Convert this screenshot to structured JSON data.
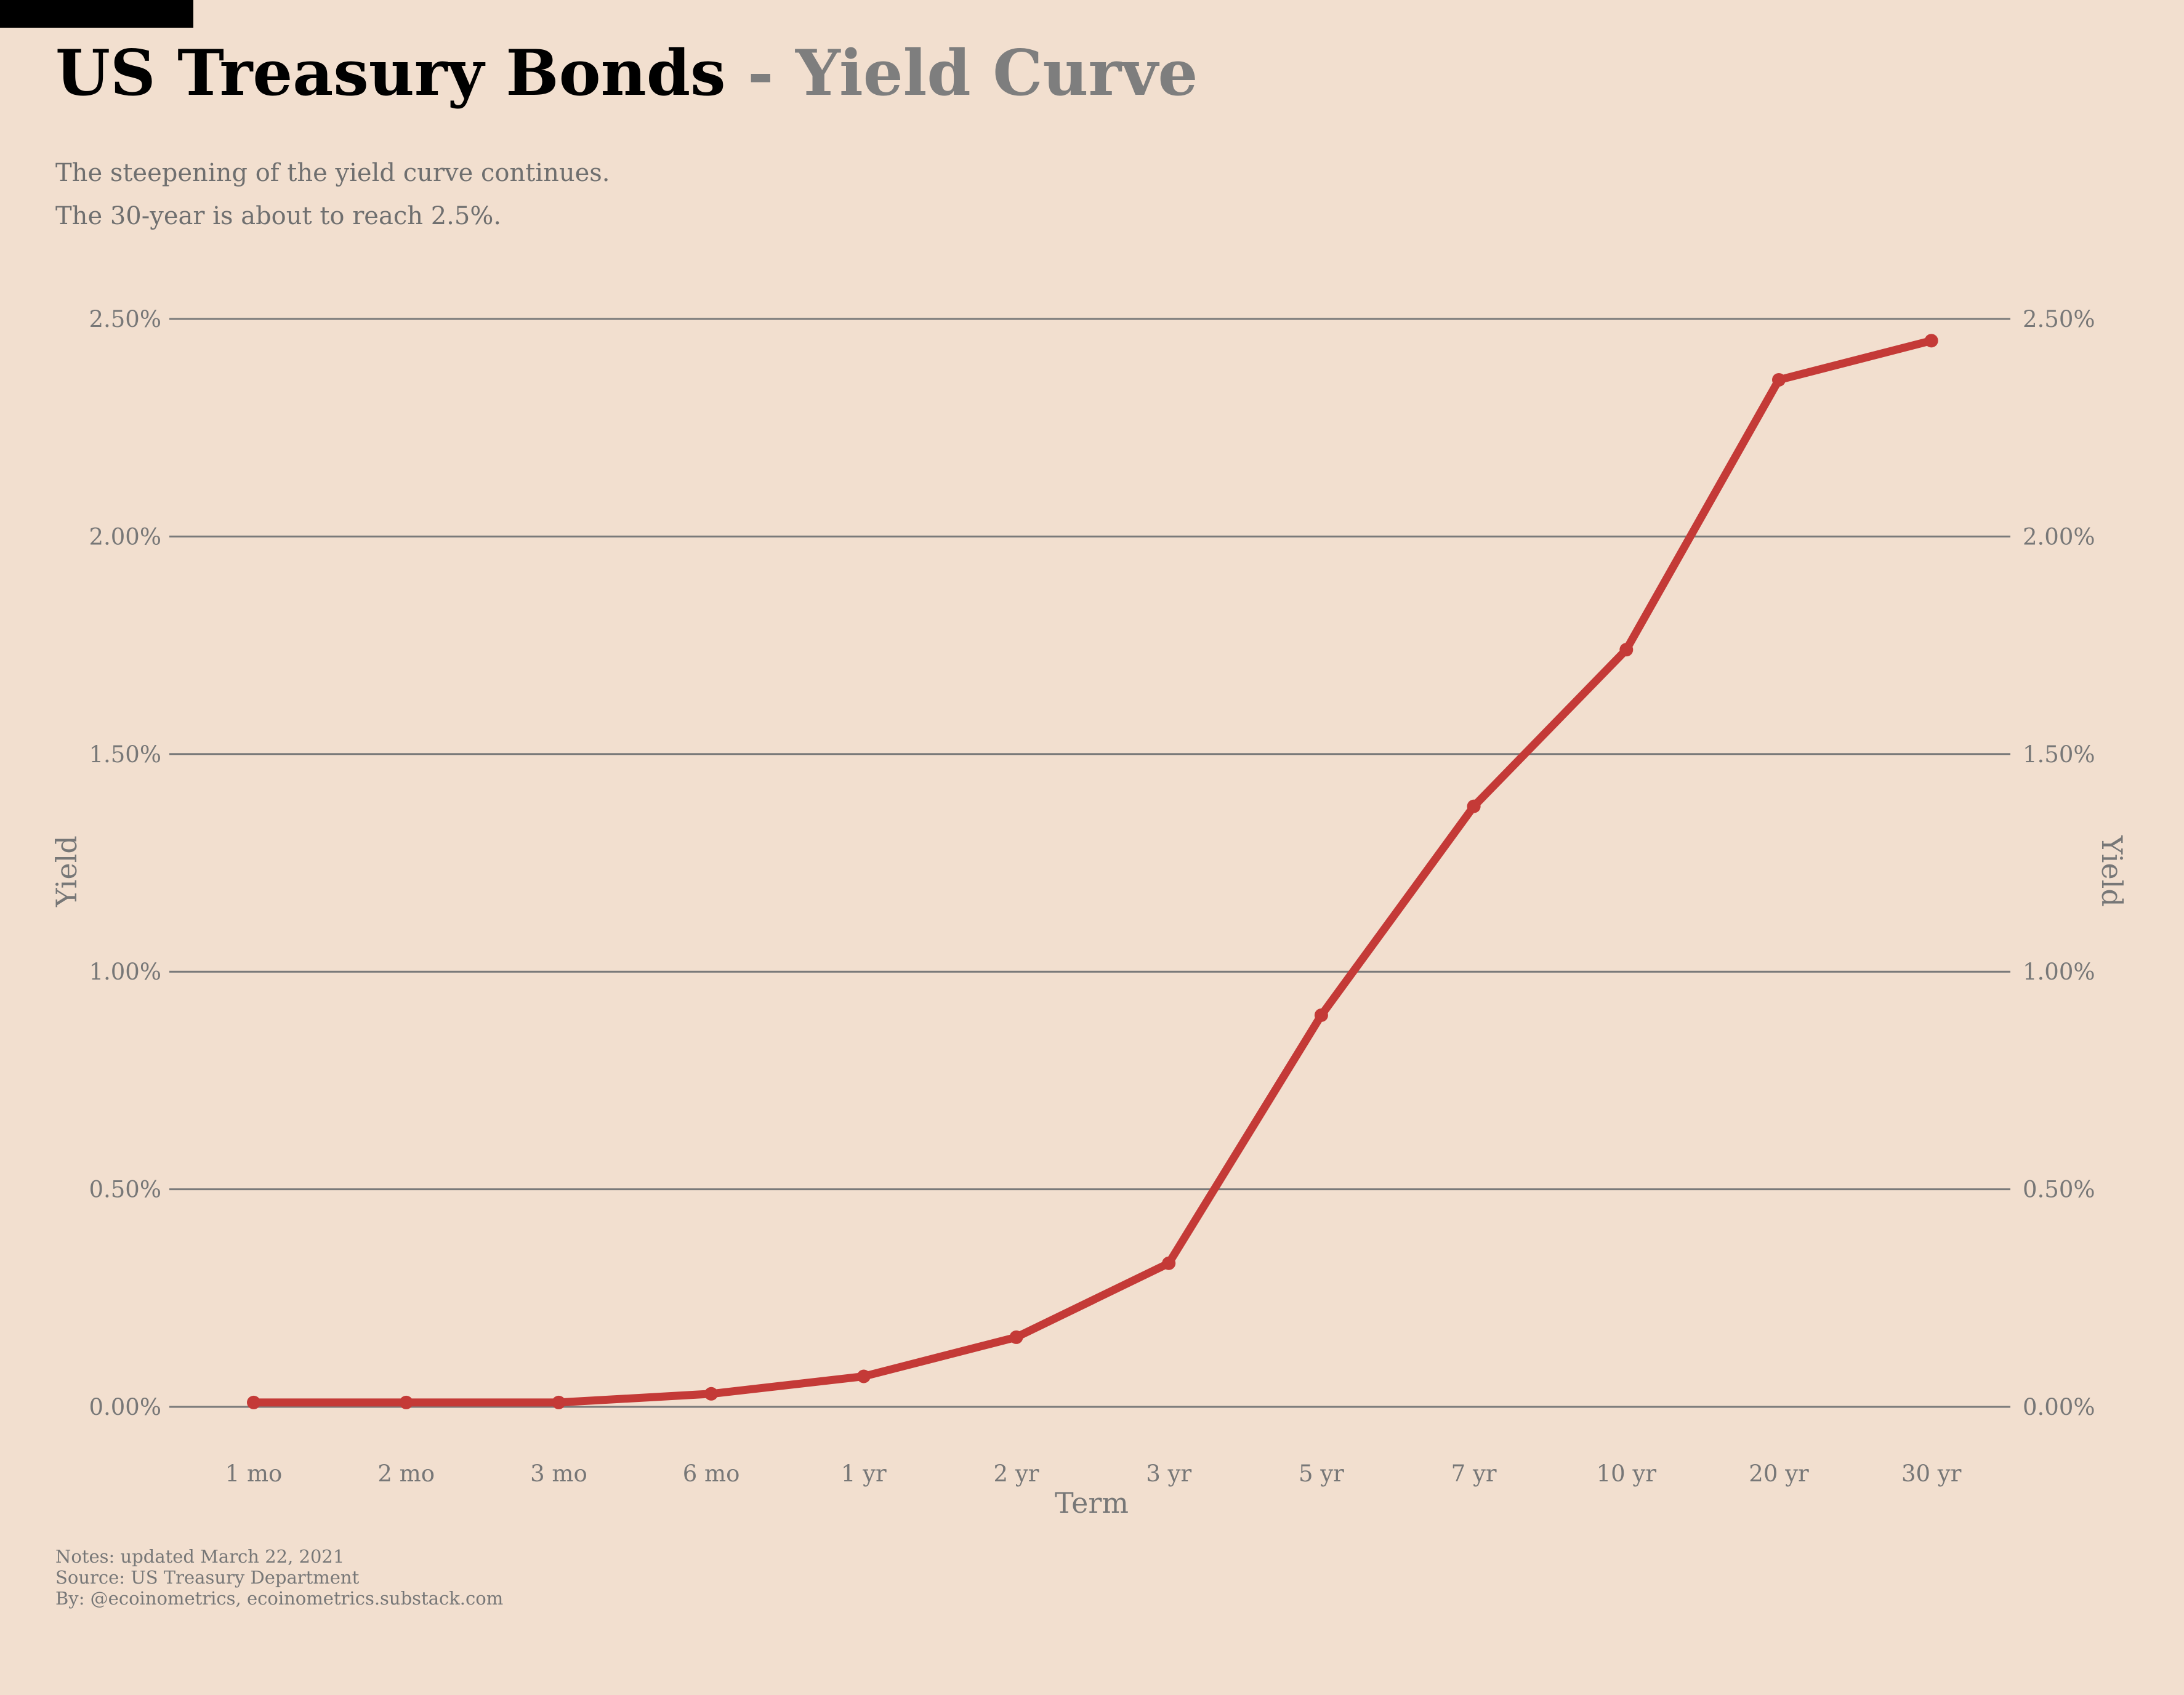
{
  "title": {
    "main": "US Treasury Bonds",
    "separator": "-",
    "accent": "Yield Curve"
  },
  "subtitle_lines": [
    "The steepening of the yield curve continues.",
    "The 30-year is about to reach 2.5%."
  ],
  "notes": [
    "Notes: updated March 22, 2021",
    "Source: US Treasury Department",
    "By: @ecoinometrics, ecoinometrics.substack.com"
  ],
  "colors": {
    "background": "#f2dfcf",
    "line": "#c43a37",
    "grid": "#7a7a7a",
    "text_muted": "#777777"
  },
  "chart_data": {
    "type": "line",
    "categories": [
      "1 mo",
      "2 mo",
      "3 mo",
      "6 mo",
      "1 yr",
      "2 yr",
      "3 yr",
      "5 yr",
      "7 yr",
      "10 yr",
      "20 yr",
      "30 yr"
    ],
    "series": [
      {
        "values": [
          0.01,
          0.01,
          0.01,
          0.03,
          0.07,
          0.16,
          0.33,
          0.9,
          1.38,
          1.74,
          2.36,
          2.45
        ]
      }
    ],
    "xlabel": "Term",
    "ylabel": "Yield",
    "ylabel_right": "Yield",
    "yticks": [
      0.0,
      0.5,
      1.0,
      1.5,
      2.0,
      2.5
    ],
    "ytick_labels": [
      "0.00%",
      "0.50%",
      "1.00%",
      "1.50%",
      "2.00%",
      "2.50%"
    ],
    "ylim": [
      0,
      2.5
    ],
    "grid": "horizontal",
    "legend": "none"
  }
}
